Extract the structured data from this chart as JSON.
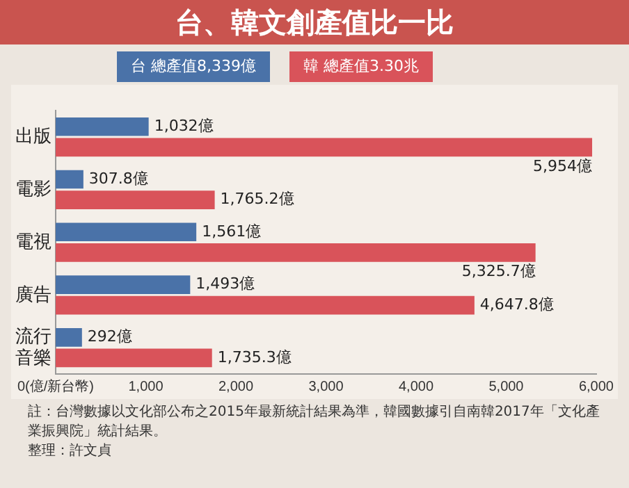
{
  "chart_data": {
    "type": "bar",
    "orientation": "horizontal",
    "title": "台、韓文創產值比一比",
    "categories": [
      "出版",
      "電影",
      "電視",
      "廣告",
      "流行音樂"
    ],
    "series": [
      {
        "name": "台 總產值8,339億",
        "color": "#4a72a8",
        "values": [
          1032,
          307.8,
          1561,
          1493,
          292
        ],
        "value_labels": [
          "1,032億",
          "307.8億",
          "1,561億",
          "1,493億",
          "292億"
        ]
      },
      {
        "name": "韓 總產值3.30兆",
        "color": "#d9535a",
        "values": [
          5954,
          1765.2,
          5325.7,
          4647.8,
          1735.3
        ],
        "value_labels": [
          "5,954億",
          "1,765.2億",
          "5,325.7億",
          "4,647.8億",
          "1,735.3億"
        ]
      }
    ],
    "xlim": [
      0,
      6000
    ],
    "xticks": [
      {
        "value": 0,
        "label": "0(億/新台幣)"
      },
      {
        "value": 1000,
        "label": "1,000"
      },
      {
        "value": 2000,
        "label": "2,000"
      },
      {
        "value": 3000,
        "label": "3,000"
      },
      {
        "value": 4000,
        "label": "4,000"
      },
      {
        "value": 5000,
        "label": "5,000"
      },
      {
        "value": 6000,
        "label": "6,000"
      }
    ],
    "grid": false,
    "legend": "top left",
    "annotations": [
      "註：台灣數據以文化部公布之2015年最新統計結果為準，韓國數據引自南韓2017年「文化產業振興院」統計結果。",
      "整理：許文貞"
    ]
  }
}
